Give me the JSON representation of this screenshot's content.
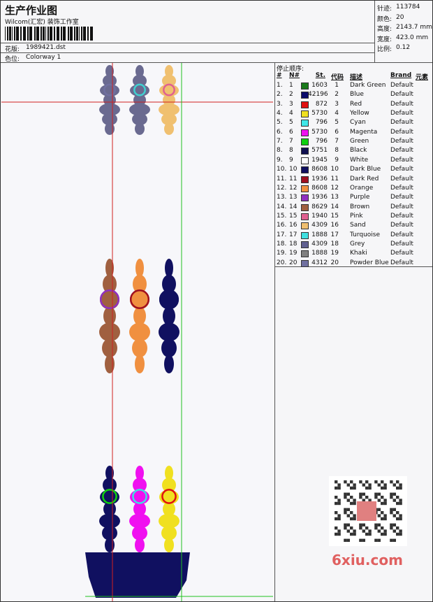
{
  "header": {
    "title": "生产作业图",
    "subtitle": "Wilcom(汇宏) 装饰工作室",
    "design_label": "花版:",
    "design": "1989421.dst",
    "colorway_label": "色位:",
    "colorway": "Colorway 1"
  },
  "info": [
    {
      "label": "针迹:",
      "value": "113784"
    },
    {
      "label": "颜色:",
      "value": "20"
    },
    {
      "label": "高度:",
      "value": "2143.7 mm"
    },
    {
      "label": "宽度:",
      "value": "423.0 mm"
    },
    {
      "label": "比例:",
      "value": "0.12"
    }
  ],
  "table": {
    "title": "停止顺序:",
    "columns": [
      "#",
      "N#",
      "St.",
      "代码",
      "描述",
      "Brand",
      "元素"
    ],
    "rows": [
      {
        "index": "1.",
        "n": "1",
        "color": "#1a7a1a",
        "stitches": "1603",
        "code": "1",
        "description": "Dark Green",
        "brand": "Default"
      },
      {
        "index": "2.",
        "n": "2",
        "color": "#0a0a6a",
        "stitches": "42196",
        "code": "2",
        "description": "Blue",
        "brand": "Default"
      },
      {
        "index": "3.",
        "n": "3",
        "color": "#e01010",
        "stitches": "872",
        "code": "3",
        "description": "Red",
        "brand": "Default"
      },
      {
        "index": "4.",
        "n": "4",
        "color": "#f0e020",
        "stitches": "5730",
        "code": "4",
        "description": "Yellow",
        "brand": "Default"
      },
      {
        "index": "5.",
        "n": "5",
        "color": "#40e8e8",
        "stitches": "796",
        "code": "5",
        "description": "Cyan",
        "brand": "Default"
      },
      {
        "index": "6.",
        "n": "6",
        "color": "#f010f0",
        "stitches": "5730",
        "code": "6",
        "description": "Magenta",
        "brand": "Default"
      },
      {
        "index": "7.",
        "n": "7",
        "color": "#10d010",
        "stitches": "796",
        "code": "7",
        "description": "Green",
        "brand": "Default"
      },
      {
        "index": "8.",
        "n": "8",
        "color": "#101050",
        "stitches": "5751",
        "code": "8",
        "description": "Black",
        "brand": "Default"
      },
      {
        "index": "9.",
        "n": "9",
        "color": "#ffffff",
        "stitches": "1945",
        "code": "9",
        "description": "White",
        "brand": "Default"
      },
      {
        "index": "10.",
        "n": "10",
        "color": "#101060",
        "stitches": "8608",
        "code": "10",
        "description": "Dark Blue",
        "brand": "Default"
      },
      {
        "index": "11.",
        "n": "11",
        "color": "#a01020",
        "stitches": "1936",
        "code": "11",
        "description": "Dark Red",
        "brand": "Default"
      },
      {
        "index": "12.",
        "n": "12",
        "color": "#f09040",
        "stitches": "8608",
        "code": "12",
        "description": "Orange",
        "brand": "Default"
      },
      {
        "index": "13.",
        "n": "13",
        "color": "#9030c0",
        "stitches": "1936",
        "code": "13",
        "description": "Purple",
        "brand": "Default"
      },
      {
        "index": "14.",
        "n": "14",
        "color": "#a06040",
        "stitches": "8629",
        "code": "14",
        "description": "Brown",
        "brand": "Default"
      },
      {
        "index": "15.",
        "n": "15",
        "color": "#e06090",
        "stitches": "1940",
        "code": "15",
        "description": "Pink",
        "brand": "Default"
      },
      {
        "index": "16.",
        "n": "16",
        "color": "#f0c070",
        "stitches": "4309",
        "code": "16",
        "description": "Sand",
        "brand": "Default"
      },
      {
        "index": "17.",
        "n": "17",
        "color": "#40e0e0",
        "stitches": "1888",
        "code": "17",
        "description": "Turquoise",
        "brand": "Default"
      },
      {
        "index": "18.",
        "n": "18",
        "color": "#606090",
        "stitches": "4309",
        "code": "18",
        "description": "Grey",
        "brand": "Default"
      },
      {
        "index": "19.",
        "n": "19",
        "color": "#808080",
        "stitches": "1888",
        "code": "19",
        "description": "Khaki",
        "brand": "Default"
      },
      {
        "index": "20.",
        "n": "20",
        "color": "#7070a0",
        "stitches": "4312",
        "code": "20",
        "description": "Powder Blue",
        "brand": "Default"
      }
    ]
  },
  "watermark": "6xiu.com"
}
